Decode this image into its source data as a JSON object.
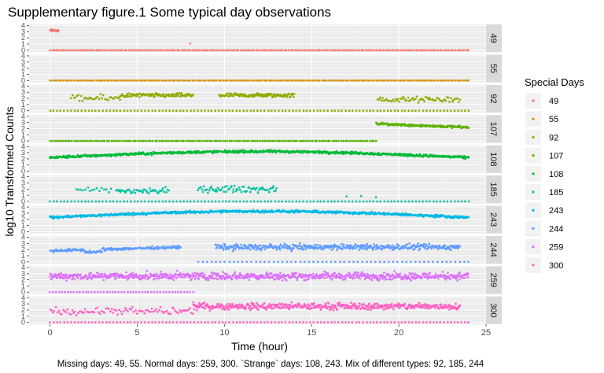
{
  "chart_data": {
    "type": "scatter",
    "title": "Supplementary figure.1 Some typical day observations",
    "xlabel": "Time (hour)",
    "ylabel": "log10 Transformed Counts",
    "caption": "Missing days: 49, 55. Normal days: 259, 300. `Strange` days: 108, 243. Mix of different types: 92, 185, 244",
    "xlim": [
      -1.2,
      25
    ],
    "xticks": [
      "0",
      "5",
      "10",
      "15",
      "20",
      "25"
    ],
    "xtick_values": [
      0,
      5,
      10,
      15,
      20,
      25
    ],
    "ylim": [
      -0.3,
      4.2
    ],
    "yticks": [
      "0",
      "1",
      "2",
      "3",
      "4"
    ],
    "ytick_values": [
      0,
      1,
      2,
      3,
      4
    ],
    "grid": true,
    "legend_title": "Special Days",
    "legend_position": "right",
    "series": [
      {
        "name": "49",
        "panel": "49",
        "color": "#F8766D",
        "pattern": [
          {
            "from": 0,
            "to": 0.5,
            "mean": 3.2,
            "spread": 0.3,
            "density": 40
          },
          {
            "from": 0,
            "to": 24,
            "mean": 0,
            "spread": 0,
            "density": 8
          },
          {
            "from": 8,
            "to": 8.05,
            "mean": 1.1,
            "spread": 0,
            "density": 20
          }
        ]
      },
      {
        "name": "55",
        "panel": "55",
        "color": "#D39200",
        "pattern": [
          {
            "from": 0,
            "to": 24,
            "mean": 0,
            "spread": 0,
            "density": 8
          }
        ]
      },
      {
        "name": "92",
        "panel": "92",
        "color": "#93AA00",
        "pattern": [
          {
            "from": 0,
            "to": 24,
            "mean": 0,
            "spread": 0,
            "density": 5
          },
          {
            "from": 1.2,
            "to": 4.0,
            "mean": 2.0,
            "spread": 0.8,
            "density": 12
          },
          {
            "from": 4.0,
            "to": 8.2,
            "mean": 2.5,
            "spread": 0.5,
            "density": 25
          },
          {
            "from": 9.7,
            "to": 14.0,
            "mean": 2.5,
            "spread": 0.5,
            "density": 28
          },
          {
            "from": 18.8,
            "to": 23.5,
            "mean": 1.8,
            "spread": 0.7,
            "density": 14
          }
        ]
      },
      {
        "name": "107",
        "panel": "107",
        "color": "#5BB300",
        "pattern": [
          {
            "from": 0,
            "to": 18.7,
            "mean": 0,
            "spread": 0,
            "density": 8
          },
          {
            "from": 18.7,
            "to": 24,
            "mean": 2.8,
            "spread": 0.3,
            "density": 30,
            "trend": -0.2
          }
        ]
      },
      {
        "name": "108",
        "panel": "108",
        "color": "#00BA38",
        "pattern": [
          {
            "from": 0,
            "to": 24,
            "mean": 2.7,
            "spread": 0.3,
            "density": 30,
            "shape": "hump"
          }
        ]
      },
      {
        "name": "185",
        "panel": "185",
        "color": "#00C19F",
        "pattern": [
          {
            "from": 0,
            "to": 24,
            "mean": 0,
            "spread": 0,
            "density": 5
          },
          {
            "from": 1.5,
            "to": 3.5,
            "mean": 1.8,
            "spread": 0.8,
            "density": 8
          },
          {
            "from": 3.8,
            "to": 6.8,
            "mean": 1.7,
            "spread": 0.8,
            "density": 16
          },
          {
            "from": 8.5,
            "to": 13.0,
            "mean": 2.0,
            "spread": 0.8,
            "density": 16
          },
          {
            "from": 17.0,
            "to": 18.7,
            "mean": 1.0,
            "spread": 0.5,
            "density": 2
          }
        ]
      },
      {
        "name": "243",
        "panel": "243",
        "color": "#00B9E3",
        "pattern": [
          {
            "from": 0,
            "to": 24,
            "mean": 2.8,
            "spread": 0.3,
            "density": 30,
            "shape": "hump"
          }
        ]
      },
      {
        "name": "244",
        "panel": "244",
        "color": "#619CFF",
        "pattern": [
          {
            "from": 0,
            "to": 7.5,
            "mean": 1.8,
            "spread": 0.3,
            "density": 28,
            "shape": "rise"
          },
          {
            "from": 8.5,
            "to": 24,
            "mean": 0,
            "spread": 0,
            "density": 4
          },
          {
            "from": 9.5,
            "to": 23.5,
            "mean": 2.4,
            "spread": 0.7,
            "density": 30
          }
        ]
      },
      {
        "name": "259",
        "panel": "259",
        "color": "#DB72FB",
        "pattern": [
          {
            "from": 0,
            "to": 8.2,
            "mean": 0,
            "spread": 0,
            "density": 6
          },
          {
            "from": 0,
            "to": 24,
            "mean": 2.6,
            "spread": 0.9,
            "density": 35
          }
        ]
      },
      {
        "name": "300",
        "panel": "300",
        "color": "#FF61C3",
        "pattern": [
          {
            "from": 0,
            "to": 24,
            "mean": 0,
            "spread": 0,
            "density": 5
          },
          {
            "from": 0,
            "to": 8.2,
            "mean": 1.8,
            "spread": 0.9,
            "density": 12
          },
          {
            "from": 8.2,
            "to": 23.5,
            "mean": 2.6,
            "spread": 0.8,
            "density": 32
          }
        ]
      }
    ]
  }
}
